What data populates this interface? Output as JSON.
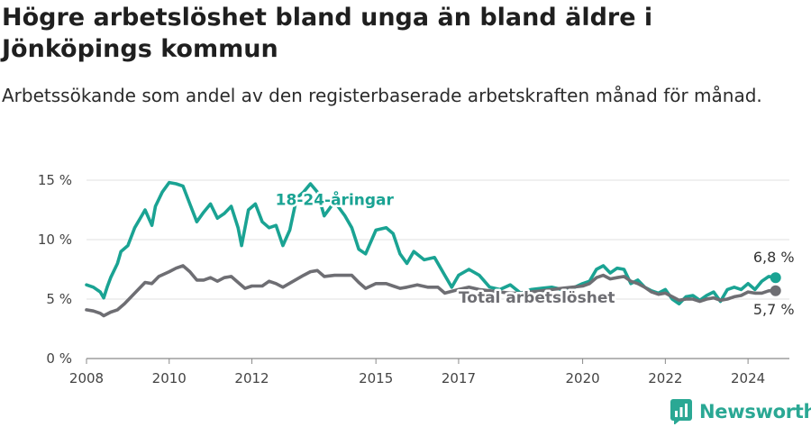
{
  "header": {
    "title": "Högre arbetslöshet bland unga än bland äldre i Jönköpings kommun",
    "subtitle": "Arbetssökande som andel av den registerbaserade arbetskraften månad för månad."
  },
  "brand": {
    "name": "Newsworthy",
    "color": "#2aa894"
  },
  "chart_data": {
    "type": "line",
    "x_ticks": [
      "2008",
      "2010",
      "2012",
      "2015",
      "2017",
      "2020",
      "2022",
      "2024"
    ],
    "y_ticks": [
      "0 %",
      "5 %",
      "10 %",
      "15 %"
    ],
    "ylim": [
      0,
      15
    ],
    "xlim": [
      "2008-01",
      "2025-01"
    ],
    "grid": true,
    "series": [
      {
        "name": "18-24-åringar",
        "color": "#1aa393",
        "end_label": "6,8 %",
        "points": [
          [
            "2008-01",
            6.2
          ],
          [
            "2008-03",
            6.0
          ],
          [
            "2008-05",
            5.6
          ],
          [
            "2008-06",
            5.1
          ],
          [
            "2008-07",
            6.0
          ],
          [
            "2008-08",
            6.8
          ],
          [
            "2008-10",
            8.0
          ],
          [
            "2008-11",
            9.0
          ],
          [
            "2009-01",
            9.5
          ],
          [
            "2009-03",
            11.0
          ],
          [
            "2009-05",
            12.0
          ],
          [
            "2009-06",
            12.5
          ],
          [
            "2009-08",
            11.2
          ],
          [
            "2009-09",
            12.8
          ],
          [
            "2009-11",
            14.0
          ],
          [
            "2010-01",
            14.8
          ],
          [
            "2010-03",
            14.7
          ],
          [
            "2010-05",
            14.5
          ],
          [
            "2010-07",
            13.0
          ],
          [
            "2010-09",
            11.5
          ],
          [
            "2010-11",
            12.3
          ],
          [
            "2011-01",
            13.0
          ],
          [
            "2011-03",
            11.8
          ],
          [
            "2011-05",
            12.2
          ],
          [
            "2011-07",
            12.8
          ],
          [
            "2011-09",
            11.0
          ],
          [
            "2011-10",
            9.5
          ],
          [
            "2011-12",
            12.5
          ],
          [
            "2012-02",
            13.0
          ],
          [
            "2012-04",
            11.5
          ],
          [
            "2012-06",
            11.0
          ],
          [
            "2012-08",
            11.2
          ],
          [
            "2012-10",
            9.5
          ],
          [
            "2012-12",
            10.8
          ],
          [
            "2013-02",
            13.5
          ],
          [
            "2013-04",
            14.0
          ],
          [
            "2013-06",
            14.7
          ],
          [
            "2013-08",
            14.0
          ],
          [
            "2013-10",
            12.0
          ],
          [
            "2014-01",
            13.2
          ],
          [
            "2014-04",
            12.0
          ],
          [
            "2014-06",
            11.0
          ],
          [
            "2014-08",
            9.2
          ],
          [
            "2014-10",
            8.8
          ],
          [
            "2015-01",
            10.8
          ],
          [
            "2015-04",
            11.0
          ],
          [
            "2015-06",
            10.5
          ],
          [
            "2015-08",
            8.8
          ],
          [
            "2015-10",
            8.0
          ],
          [
            "2015-12",
            9.0
          ],
          [
            "2016-03",
            8.3
          ],
          [
            "2016-06",
            8.5
          ],
          [
            "2016-09",
            7.0
          ],
          [
            "2016-11",
            6.0
          ],
          [
            "2017-01",
            7.0
          ],
          [
            "2017-04",
            7.5
          ],
          [
            "2017-07",
            7.0
          ],
          [
            "2017-10",
            6.0
          ],
          [
            "2018-01",
            5.8
          ],
          [
            "2018-04",
            6.2
          ],
          [
            "2018-07",
            5.5
          ],
          [
            "2018-10",
            5.8
          ],
          [
            "2019-01",
            5.9
          ],
          [
            "2019-04",
            6.0
          ],
          [
            "2019-07",
            5.8
          ],
          [
            "2019-10",
            5.9
          ],
          [
            "2020-01",
            6.3
          ],
          [
            "2020-03",
            6.5
          ],
          [
            "2020-05",
            7.5
          ],
          [
            "2020-07",
            7.8
          ],
          [
            "2020-09",
            7.2
          ],
          [
            "2020-11",
            7.6
          ],
          [
            "2021-01",
            7.5
          ],
          [
            "2021-03",
            6.3
          ],
          [
            "2021-05",
            6.6
          ],
          [
            "2021-07",
            6.0
          ],
          [
            "2021-09",
            5.7
          ],
          [
            "2021-11",
            5.5
          ],
          [
            "2022-01",
            5.8
          ],
          [
            "2022-03",
            5.0
          ],
          [
            "2022-05",
            4.6
          ],
          [
            "2022-07",
            5.2
          ],
          [
            "2022-09",
            5.3
          ],
          [
            "2022-11",
            4.9
          ],
          [
            "2023-01",
            5.3
          ],
          [
            "2023-03",
            5.6
          ],
          [
            "2023-05",
            4.8
          ],
          [
            "2023-07",
            5.8
          ],
          [
            "2023-09",
            6.0
          ],
          [
            "2023-11",
            5.8
          ],
          [
            "2024-01",
            6.3
          ],
          [
            "2024-03",
            5.8
          ],
          [
            "2024-05",
            6.5
          ],
          [
            "2024-07",
            6.9
          ],
          [
            "2024-09",
            6.8
          ]
        ]
      },
      {
        "name": "Total arbetslöshet",
        "color": "#6e6e73",
        "end_label": "5,7 %",
        "points": [
          [
            "2008-01",
            4.1
          ],
          [
            "2008-03",
            4.0
          ],
          [
            "2008-05",
            3.8
          ],
          [
            "2008-06",
            3.6
          ],
          [
            "2008-08",
            3.9
          ],
          [
            "2008-10",
            4.1
          ],
          [
            "2008-12",
            4.6
          ],
          [
            "2009-02",
            5.2
          ],
          [
            "2009-04",
            5.8
          ],
          [
            "2009-06",
            6.4
          ],
          [
            "2009-08",
            6.3
          ],
          [
            "2009-10",
            6.9
          ],
          [
            "2010-01",
            7.3
          ],
          [
            "2010-03",
            7.6
          ],
          [
            "2010-05",
            7.8
          ],
          [
            "2010-07",
            7.3
          ],
          [
            "2010-09",
            6.6
          ],
          [
            "2010-11",
            6.6
          ],
          [
            "2011-01",
            6.8
          ],
          [
            "2011-03",
            6.5
          ],
          [
            "2011-05",
            6.8
          ],
          [
            "2011-07",
            6.9
          ],
          [
            "2011-09",
            6.4
          ],
          [
            "2011-11",
            5.9
          ],
          [
            "2012-01",
            6.1
          ],
          [
            "2012-04",
            6.1
          ],
          [
            "2012-06",
            6.5
          ],
          [
            "2012-08",
            6.3
          ],
          [
            "2012-10",
            6.0
          ],
          [
            "2013-01",
            6.5
          ],
          [
            "2013-04",
            7.0
          ],
          [
            "2013-06",
            7.3
          ],
          [
            "2013-08",
            7.4
          ],
          [
            "2013-10",
            6.9
          ],
          [
            "2014-01",
            7.0
          ],
          [
            "2014-04",
            7.0
          ],
          [
            "2014-06",
            7.0
          ],
          [
            "2014-08",
            6.4
          ],
          [
            "2014-10",
            5.9
          ],
          [
            "2015-01",
            6.3
          ],
          [
            "2015-04",
            6.3
          ],
          [
            "2015-06",
            6.1
          ],
          [
            "2015-08",
            5.9
          ],
          [
            "2015-10",
            6.0
          ],
          [
            "2016-01",
            6.2
          ],
          [
            "2016-04",
            6.0
          ],
          [
            "2016-07",
            6.0
          ],
          [
            "2016-09",
            5.5
          ],
          [
            "2017-01",
            5.8
          ],
          [
            "2017-04",
            6.0
          ],
          [
            "2017-07",
            5.8
          ],
          [
            "2017-10",
            5.7
          ],
          [
            "2018-01",
            5.6
          ],
          [
            "2018-04",
            5.5
          ],
          [
            "2018-07",
            5.5
          ],
          [
            "2018-10",
            5.6
          ],
          [
            "2019-01",
            5.7
          ],
          [
            "2019-04",
            5.8
          ],
          [
            "2019-07",
            5.9
          ],
          [
            "2019-10",
            6.0
          ],
          [
            "2020-01",
            6.1
          ],
          [
            "2020-03",
            6.3
          ],
          [
            "2020-05",
            6.8
          ],
          [
            "2020-07",
            7.0
          ],
          [
            "2020-09",
            6.7
          ],
          [
            "2020-11",
            6.8
          ],
          [
            "2021-01",
            6.9
          ],
          [
            "2021-03",
            6.5
          ],
          [
            "2021-05",
            6.3
          ],
          [
            "2021-07",
            6.0
          ],
          [
            "2021-09",
            5.6
          ],
          [
            "2021-11",
            5.4
          ],
          [
            "2022-01",
            5.5
          ],
          [
            "2022-03",
            5.2
          ],
          [
            "2022-05",
            4.9
          ],
          [
            "2022-07",
            5.0
          ],
          [
            "2022-09",
            5.0
          ],
          [
            "2022-11",
            4.8
          ],
          [
            "2023-01",
            5.0
          ],
          [
            "2023-03",
            5.1
          ],
          [
            "2023-05",
            4.9
          ],
          [
            "2023-07",
            5.0
          ],
          [
            "2023-09",
            5.2
          ],
          [
            "2023-11",
            5.3
          ],
          [
            "2024-01",
            5.6
          ],
          [
            "2024-03",
            5.5
          ],
          [
            "2024-05",
            5.5
          ],
          [
            "2024-07",
            5.7
          ],
          [
            "2024-09",
            5.7
          ]
        ]
      }
    ]
  }
}
